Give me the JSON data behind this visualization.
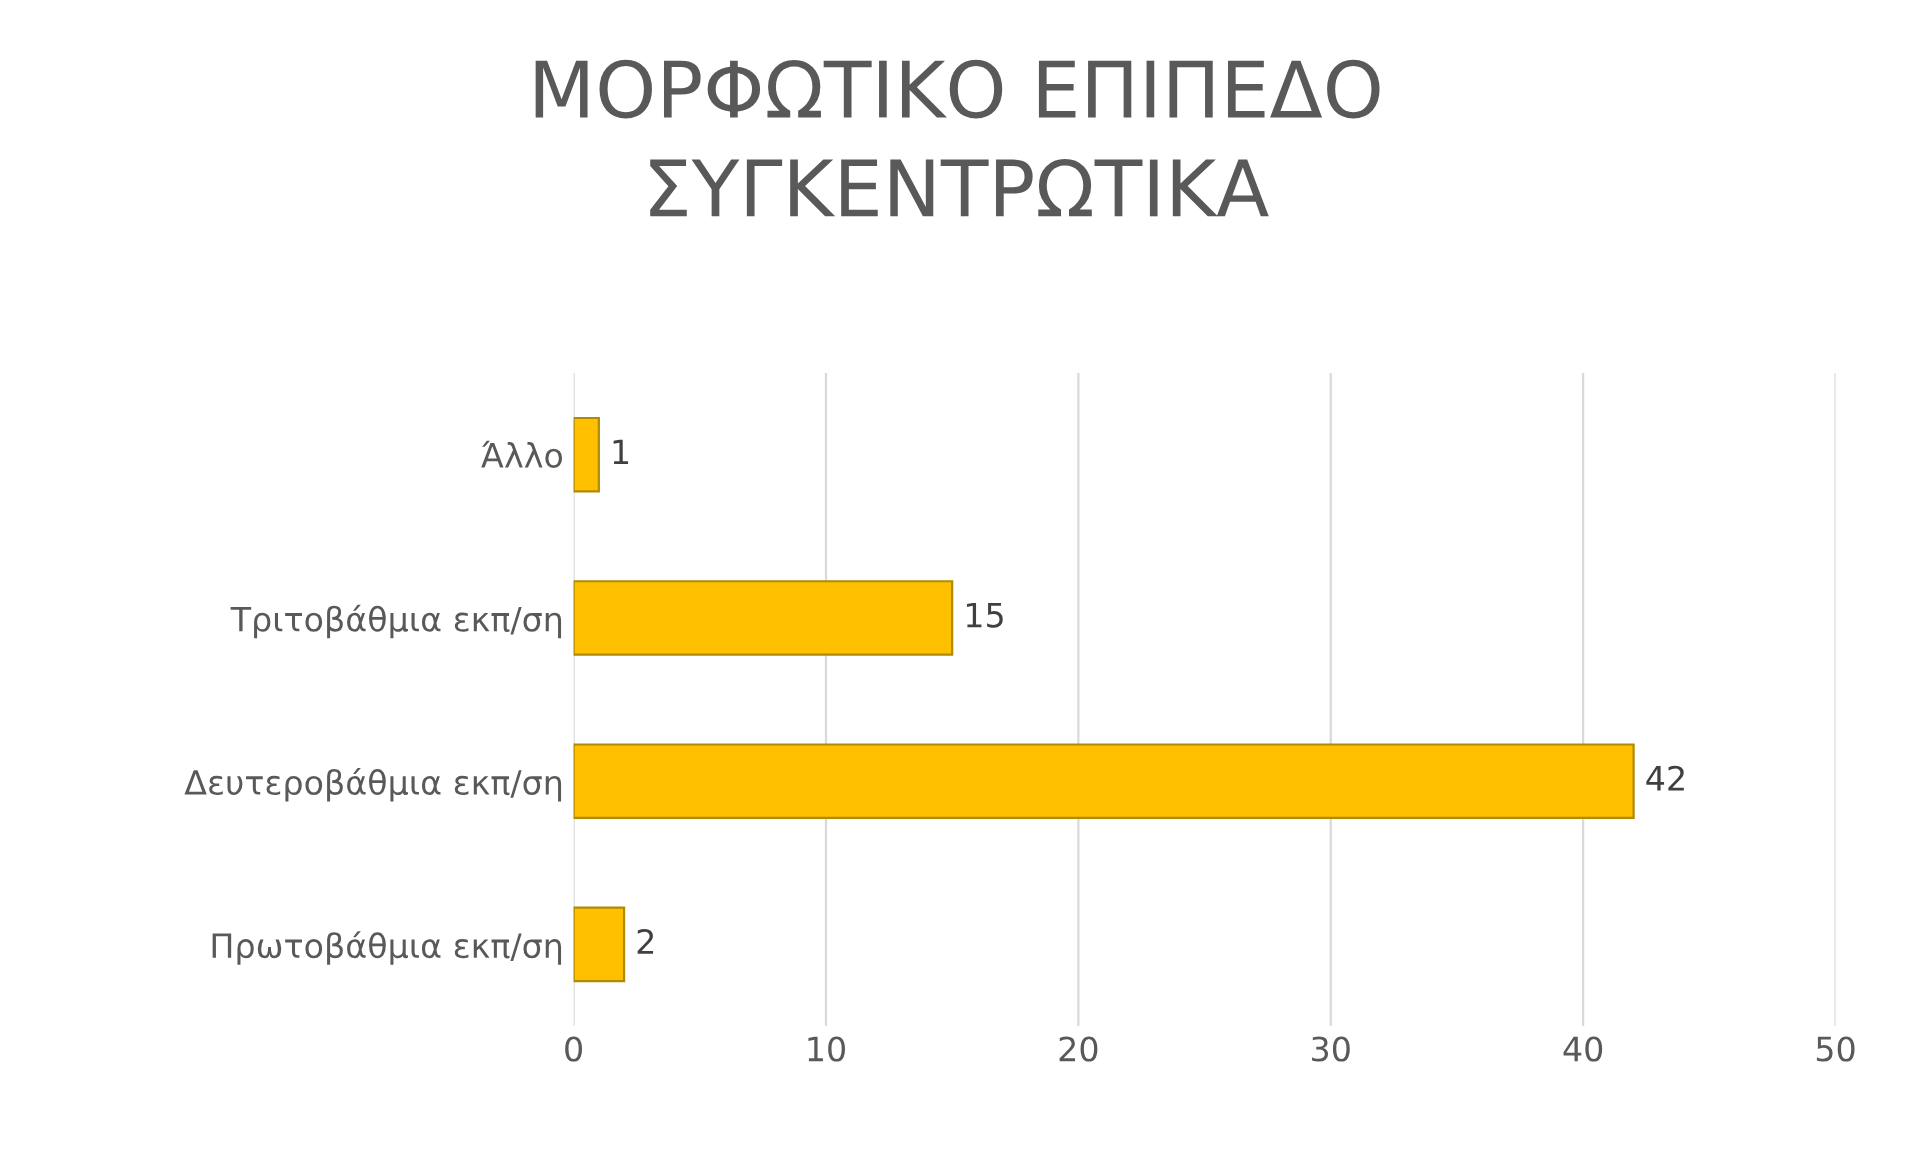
{
  "chart_data": {
    "type": "bar",
    "orientation": "horizontal",
    "title": "ΜΟΡΦΩΤΙΚΟ ΕΠΙΠΕΔΟ\nΣΥΓΚΕΝΤΡΩΤΙΚΑ",
    "categories": [
      "Άλλο",
      "Τριτοβάθμια εκπ/ση",
      "Δευτεροβάθμια εκπ/ση",
      "Πρωτοβάθμια εκπ/ση"
    ],
    "values": [
      1,
      15,
      42,
      2
    ],
    "color": "#ffc000",
    "xlim": [
      0,
      50
    ],
    "xticks": [
      0,
      10,
      20,
      30,
      40,
      50
    ],
    "grid": "x",
    "data_labels": true
  }
}
